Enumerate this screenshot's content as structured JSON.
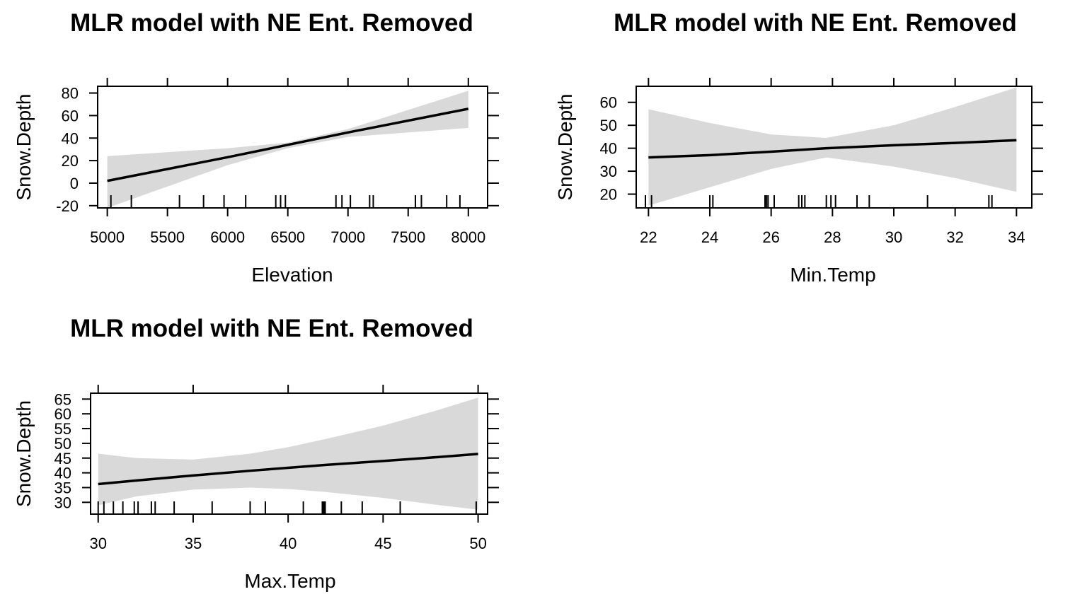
{
  "colors": {
    "band": "#d9d9d9",
    "line": "#000000",
    "frame": "#000000"
  },
  "chart_data": [
    {
      "type": "line",
      "title": "MLR model with NE Ent. Removed",
      "xlabel": "Elevation",
      "ylabel": "Snow.Depth",
      "xlim": [
        4920,
        8160
      ],
      "ylim": [
        -22,
        86
      ],
      "xticks": [
        5000,
        5500,
        6000,
        6500,
        7000,
        7500,
        8000
      ],
      "xticklabels": [
        "5000",
        "5500",
        "6000",
        "6500",
        "7000",
        "7500",
        "8000"
      ],
      "yticks": [
        -20,
        0,
        20,
        40,
        60,
        80
      ],
      "yticklabels": [
        "-20",
        "0",
        "20",
        "40",
        "60",
        "80"
      ],
      "x": [
        5000,
        6000,
        6500,
        7000,
        8000
      ],
      "fit": [
        2,
        23,
        34,
        45,
        66
      ],
      "lower": [
        -22,
        16,
        31,
        41,
        49
      ],
      "upper": [
        24,
        31,
        36,
        48,
        82
      ],
      "rug": [
        5030,
        5200,
        5600,
        5800,
        5970,
        6150,
        6400,
        6440,
        6480,
        6900,
        6950,
        7020,
        7180,
        7210,
        7560,
        7610,
        7820,
        7930
      ]
    },
    {
      "type": "line",
      "title": "MLR model with NE Ent. Removed",
      "xlabel": "Min.Temp",
      "ylabel": "Snow.Depth",
      "xlim": [
        21.6,
        34.5
      ],
      "ylim": [
        14,
        67
      ],
      "xticks": [
        22,
        24,
        26,
        28,
        30,
        32,
        34
      ],
      "xticklabels": [
        "22",
        "24",
        "26",
        "28",
        "30",
        "32",
        "34"
      ],
      "yticks": [
        20,
        30,
        40,
        50,
        60
      ],
      "yticklabels": [
        "20",
        "30",
        "40",
        "50",
        "60"
      ],
      "x": [
        22,
        24,
        26,
        27.8,
        30,
        32,
        34
      ],
      "fit": [
        36,
        37,
        38.5,
        40,
        41.3,
        42.3,
        43.5
      ],
      "lower": [
        15,
        23,
        31,
        36,
        32,
        27,
        21
      ],
      "upper": [
        57,
        51,
        46,
        44.5,
        50,
        58,
        66.5
      ],
      "rug": [
        21.9,
        22.1,
        24,
        24.1,
        25.8,
        25.85,
        25.9,
        26.1,
        26.9,
        27,
        27.1,
        27.8,
        27.95,
        28.1,
        28.8,
        29.2,
        31.1,
        33.1,
        33.2
      ]
    },
    {
      "type": "line",
      "title": "MLR model with NE Ent. Removed",
      "xlabel": "Max.Temp",
      "ylabel": "Snow.Depth",
      "xlim": [
        29.6,
        50.5
      ],
      "ylim": [
        26,
        67
      ],
      "xticks": [
        30,
        35,
        40,
        45,
        50
      ],
      "xticklabels": [
        "30",
        "35",
        "40",
        "45",
        "50"
      ],
      "yticks": [
        30,
        35,
        40,
        45,
        50,
        55,
        60,
        65
      ],
      "yticklabels": [
        "30",
        "35",
        "40",
        "45",
        "50",
        "55",
        "60",
        "65"
      ],
      "x": [
        30,
        32,
        35,
        38,
        40,
        42,
        45,
        48,
        50
      ],
      "fit": [
        36.2,
        37.4,
        39.1,
        40.7,
        41.7,
        42.7,
        44,
        45.4,
        46.4
      ],
      "lower": [
        29,
        32,
        34.3,
        35,
        34.5,
        33.5,
        31.5,
        29,
        27.5
      ],
      "upper": [
        46.5,
        45,
        44.5,
        46.5,
        48.7,
        51.5,
        56,
        61.5,
        65.5
      ],
      "rug": [
        30,
        30.3,
        30.8,
        31.3,
        31.9,
        32.1,
        32.8,
        33,
        34,
        36,
        38,
        38.8,
        40.8,
        41.8,
        41.85,
        41.9,
        41.95,
        42.8,
        43.9,
        45.9,
        49.9
      ]
    }
  ]
}
